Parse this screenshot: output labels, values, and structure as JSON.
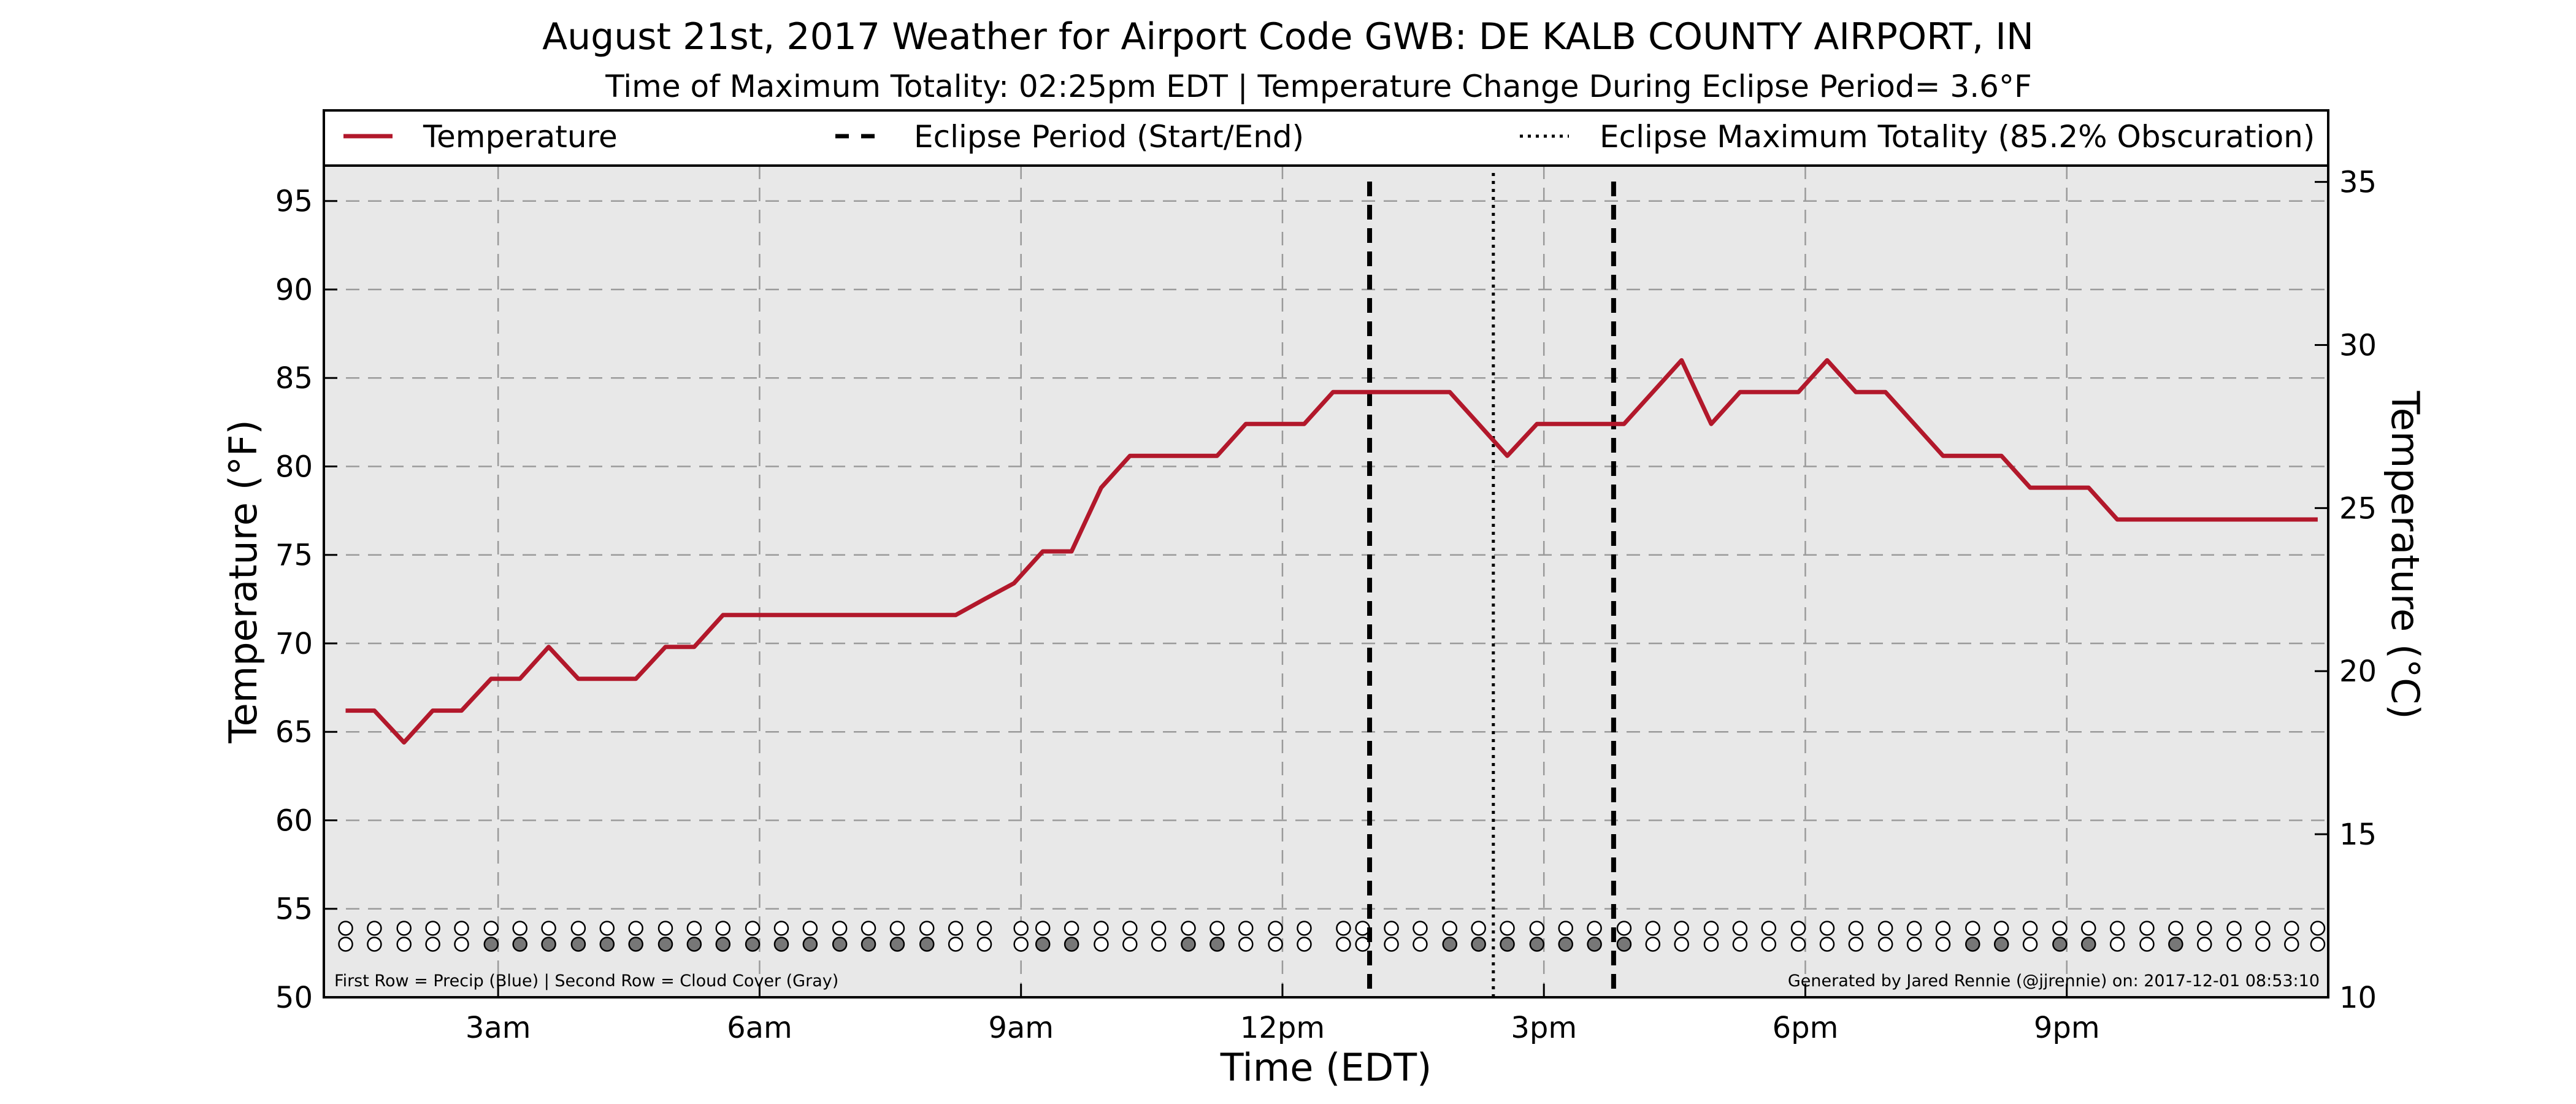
{
  "chart_data": {
    "type": "line",
    "title": "August 21st, 2017 Weather for Airport Code GWB: DE KALB COUNTY AIRPORT, IN",
    "subtitle": "Time of Maximum Totality: 02:25pm EDT | Temperature Change During Eclipse Period= 3.6°F",
    "xlabel": "Time (EDT)",
    "ylabel": "Temperature (°F)",
    "ylabel_right": "Temperature (°C)",
    "x_unit": "hours after midnight EDT, Aug 21 2017",
    "xlim": [
      1,
      24
    ],
    "ylim": [
      50,
      97
    ],
    "ylim_right": [
      10,
      35.5
    ],
    "x_ticks": [
      {
        "x": 3,
        "label": "3am"
      },
      {
        "x": 6,
        "label": "6am"
      },
      {
        "x": 9,
        "label": "9am"
      },
      {
        "x": 12,
        "label": "12pm"
      },
      {
        "x": 15,
        "label": "3pm"
      },
      {
        "x": 18,
        "label": "6pm"
      },
      {
        "x": 21,
        "label": "9pm"
      }
    ],
    "y_ticks": [
      50,
      55,
      60,
      65,
      70,
      75,
      80,
      85,
      90,
      95
    ],
    "y_ticks_right": [
      10,
      15,
      20,
      25,
      30,
      35
    ],
    "grid": true,
    "legend_position": "top",
    "legend": [
      {
        "label": "Temperature",
        "style": "solid"
      },
      {
        "label": "Eclipse Period (Start/End)",
        "style": "dashed"
      },
      {
        "label": "Eclipse Maximum Totality (85.2% Obscuration)",
        "style": "dotted"
      }
    ],
    "series": [
      {
        "name": "Temperature",
        "color": "#b2182b",
        "points": [
          [
            1.25,
            66.2
          ],
          [
            1.58,
            66.2
          ],
          [
            1.92,
            64.4
          ],
          [
            2.25,
            66.2
          ],
          [
            2.58,
            66.2
          ],
          [
            2.92,
            68.0
          ],
          [
            3.25,
            68.0
          ],
          [
            3.58,
            69.8
          ],
          [
            3.92,
            68.0
          ],
          [
            4.25,
            68.0
          ],
          [
            4.58,
            68.0
          ],
          [
            4.92,
            69.8
          ],
          [
            5.25,
            69.8
          ],
          [
            5.58,
            71.6
          ],
          [
            5.92,
            71.6
          ],
          [
            6.25,
            71.6
          ],
          [
            6.58,
            71.6
          ],
          [
            6.92,
            71.6
          ],
          [
            7.25,
            71.6
          ],
          [
            7.58,
            71.6
          ],
          [
            7.92,
            71.6
          ],
          [
            8.25,
            71.6
          ],
          [
            8.58,
            72.5
          ],
          [
            8.92,
            73.4
          ],
          [
            9.25,
            75.2
          ],
          [
            9.58,
            75.2
          ],
          [
            9.92,
            78.8
          ],
          [
            10.25,
            80.6
          ],
          [
            10.58,
            80.6
          ],
          [
            10.92,
            80.6
          ],
          [
            11.25,
            80.6
          ],
          [
            11.58,
            82.4
          ],
          [
            11.92,
            82.4
          ],
          [
            12.25,
            82.4
          ],
          [
            12.58,
            84.2
          ],
          [
            12.92,
            84.2
          ],
          [
            13.25,
            84.2
          ],
          [
            13.58,
            84.2
          ],
          [
            13.92,
            84.2
          ],
          [
            14.25,
            82.4
          ],
          [
            14.58,
            80.6
          ],
          [
            14.92,
            82.4
          ],
          [
            15.25,
            82.4
          ],
          [
            15.58,
            82.4
          ],
          [
            15.92,
            82.4
          ],
          [
            16.25,
            84.2
          ],
          [
            16.58,
            86.0
          ],
          [
            16.92,
            82.4
          ],
          [
            17.25,
            84.2
          ],
          [
            17.58,
            84.2
          ],
          [
            17.92,
            84.2
          ],
          [
            18.25,
            86.0
          ],
          [
            18.58,
            84.2
          ],
          [
            18.92,
            84.2
          ],
          [
            19.25,
            82.4
          ],
          [
            19.58,
            80.6
          ],
          [
            19.92,
            80.6
          ],
          [
            20.25,
            80.6
          ],
          [
            20.58,
            78.8
          ],
          [
            20.92,
            78.8
          ],
          [
            21.25,
            78.8
          ],
          [
            21.58,
            77.0
          ],
          [
            21.92,
            77.0
          ],
          [
            22.25,
            77.0
          ],
          [
            22.58,
            77.0
          ],
          [
            22.92,
            77.0
          ],
          [
            23.25,
            77.0
          ],
          [
            23.58,
            77.0
          ],
          [
            23.88,
            77.0
          ]
        ]
      }
    ],
    "eclipse_start": 13.0,
    "eclipse_end": 15.8,
    "eclipse_max": 14.42,
    "precip_cloud_rows": {
      "precip_color": "#2166ac",
      "cloud_color": "#777777",
      "observations": [
        [
          1.25,
          0,
          0
        ],
        [
          1.58,
          0,
          0
        ],
        [
          1.92,
          0,
          0
        ],
        [
          2.25,
          0,
          0
        ],
        [
          2.58,
          0,
          0
        ],
        [
          2.92,
          0,
          1
        ],
        [
          3.25,
          0,
          1
        ],
        [
          3.58,
          0,
          1
        ],
        [
          3.92,
          0,
          1
        ],
        [
          4.25,
          0,
          1
        ],
        [
          4.58,
          0,
          1
        ],
        [
          4.92,
          0,
          1
        ],
        [
          5.25,
          0,
          1
        ],
        [
          5.58,
          0,
          1
        ],
        [
          5.92,
          0,
          1
        ],
        [
          6.25,
          0,
          1
        ],
        [
          6.58,
          0,
          1
        ],
        [
          6.92,
          0,
          1
        ],
        [
          7.25,
          0,
          1
        ],
        [
          7.58,
          0,
          1
        ],
        [
          7.92,
          0,
          1
        ],
        [
          8.25,
          0,
          0
        ],
        [
          8.58,
          0,
          0
        ],
        [
          9.0,
          0,
          0
        ],
        [
          9.25,
          0,
          1
        ],
        [
          9.58,
          0,
          1
        ],
        [
          9.92,
          0,
          0
        ],
        [
          10.25,
          0,
          0
        ],
        [
          10.58,
          0,
          0
        ],
        [
          10.92,
          0,
          1
        ],
        [
          11.25,
          0,
          1
        ],
        [
          11.58,
          0,
          0
        ],
        [
          11.92,
          0,
          0
        ],
        [
          12.25,
          0,
          0
        ],
        [
          12.7,
          0,
          0
        ],
        [
          12.92,
          0,
          0
        ],
        [
          13.25,
          0,
          0
        ],
        [
          13.58,
          0,
          0
        ],
        [
          13.92,
          0,
          1
        ],
        [
          14.25,
          0,
          1
        ],
        [
          14.58,
          0,
          1
        ],
        [
          14.92,
          0,
          1
        ],
        [
          15.25,
          0,
          1
        ],
        [
          15.58,
          0,
          1
        ],
        [
          15.92,
          0,
          1
        ],
        [
          16.25,
          0,
          0
        ],
        [
          16.58,
          0,
          0
        ],
        [
          16.92,
          0,
          0
        ],
        [
          17.25,
          0,
          0
        ],
        [
          17.58,
          0,
          0
        ],
        [
          17.92,
          0,
          0
        ],
        [
          18.25,
          0,
          0
        ],
        [
          18.58,
          0,
          0
        ],
        [
          18.92,
          0,
          0
        ],
        [
          19.25,
          0,
          0
        ],
        [
          19.58,
          0,
          0
        ],
        [
          19.92,
          0,
          1
        ],
        [
          20.25,
          0,
          1
        ],
        [
          20.58,
          0,
          0
        ],
        [
          20.92,
          0,
          1
        ],
        [
          21.25,
          0,
          1
        ],
        [
          21.58,
          0,
          0
        ],
        [
          21.92,
          0,
          0
        ],
        [
          22.25,
          0,
          1
        ],
        [
          22.58,
          0,
          0
        ],
        [
          22.92,
          0,
          0
        ],
        [
          23.25,
          0,
          0
        ],
        [
          23.58,
          0,
          0
        ],
        [
          23.88,
          0,
          0
        ]
      ]
    },
    "footnote_left": "First Row = Precip (Blue) | Second Row = Cloud Cover (Gray)",
    "footnote_right": "Generated by Jared Rennie (@jjrennie) on: 2017-12-01 08:53:10",
    "colors": {
      "plot_background": "#e8e8e8",
      "temperature": "#b2182b"
    }
  }
}
